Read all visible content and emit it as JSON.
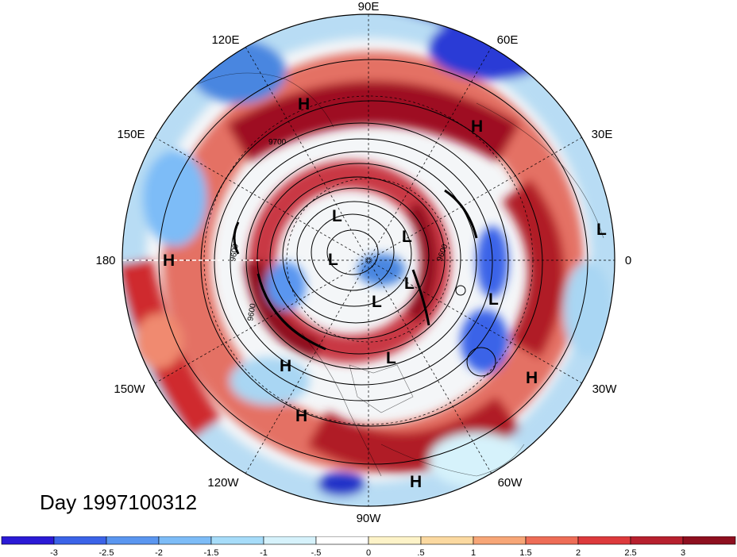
{
  "title": "Day 1997100312",
  "longitude_labels": {
    "lon_90e": "90E",
    "lon_60e": "60E",
    "lon_30e": "30E",
    "lon_0": "0",
    "lon_30w": "30W",
    "lon_60w": "60W",
    "lon_90w": "90W",
    "lon_120w": "120W",
    "lon_150w": "150W",
    "lon_180": "180",
    "lon_150e": "150E",
    "lon_120e": "120E"
  },
  "contour_labels": [
    "9700",
    "9600",
    "9600",
    "9600"
  ],
  "pressure_centers": [
    {
      "text": "H"
    },
    {
      "text": "H"
    },
    {
      "text": "H"
    },
    {
      "text": "H"
    },
    {
      "text": "H"
    },
    {
      "text": "H"
    },
    {
      "text": "H"
    },
    {
      "text": "L"
    },
    {
      "text": "L"
    },
    {
      "text": "L"
    },
    {
      "text": "L"
    },
    {
      "text": "L"
    },
    {
      "text": "L"
    },
    {
      "text": "L"
    },
    {
      "text": "L"
    }
  ],
  "colorbar": {
    "tick_labels": [
      "-3",
      "-2.5",
      "-2",
      "-1.5",
      "-1",
      "-.5",
      "0",
      ".5",
      "1",
      "1.5",
      "2",
      "2.5",
      "3"
    ],
    "colors": [
      "#2b1ad6",
      "#3b63e8",
      "#5a96f0",
      "#7dbcf7",
      "#a6dcf9",
      "#d6f2fb",
      "#ffffff",
      "#fdf3c8",
      "#fbd9a0",
      "#f7a677",
      "#ee6d57",
      "#dd3a3c",
      "#b7202e",
      "#8e0f1f"
    ]
  },
  "field_colors": {
    "dark_red": "#9e1020",
    "red": "#cf2a2e",
    "light_red": "#f08a70",
    "white": "#f4f6f8",
    "light_blue": "#a9d6f3",
    "blue": "#4a86e0",
    "dark_blue": "#2230c8"
  }
}
